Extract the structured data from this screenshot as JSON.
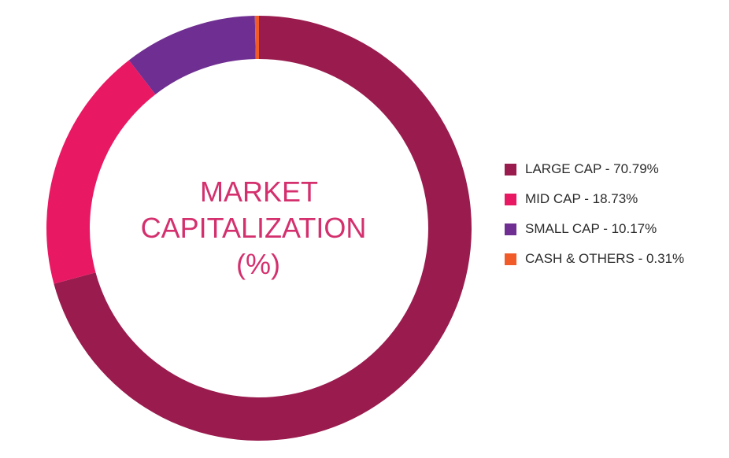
{
  "chart_data": {
    "type": "pie",
    "title_lines": [
      "MARKET",
      "CAPITALIZATION",
      "(%)"
    ],
    "slices": [
      {
        "label": "LARGE CAP - 70.79%",
        "value": 70.79,
        "color": "#9a1b4e"
      },
      {
        "label": "MID CAP - 18.73%",
        "value": 18.73,
        "color": "#e91863"
      },
      {
        "label": "SMALL CAP - 10.17%",
        "value": 10.17,
        "color": "#6f2e91"
      },
      {
        "label": "CASH & OTHERS - 0.31%",
        "value": 0.31,
        "color": "#f15a29"
      }
    ],
    "title_color": "#d4306e",
    "legend_position": "right",
    "start_angle": "top, clockwise"
  }
}
